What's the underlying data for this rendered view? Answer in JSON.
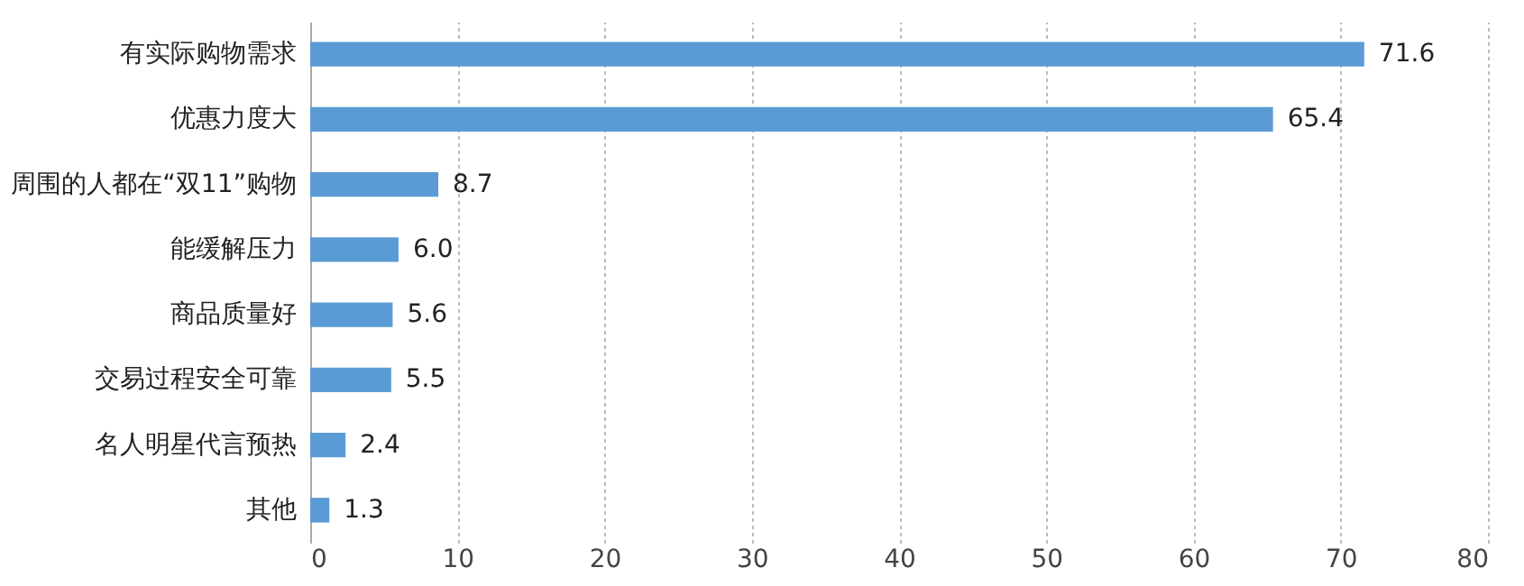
{
  "chart_data": {
    "type": "bar",
    "orientation": "horizontal",
    "categories": [
      "有实际购物需求",
      "优惠力度大",
      "周围的人都在“双11”购物",
      "能缓解压力",
      "商品质量好",
      "交易过程安全可靠",
      "名人明星代言预热",
      "其他"
    ],
    "values": [
      71.6,
      65.4,
      8.7,
      6.0,
      5.6,
      5.5,
      2.4,
      1.3
    ],
    "value_labels": [
      "71.6",
      "65.4",
      "8.7",
      "6.0",
      "5.6",
      "5.5",
      "2.4",
      "1.3"
    ],
    "color": "#5b9bd5",
    "xlim": [
      0,
      80
    ],
    "xticks": [
      0,
      10,
      20,
      30,
      40,
      50,
      60,
      70,
      80
    ],
    "grid": "x"
  }
}
